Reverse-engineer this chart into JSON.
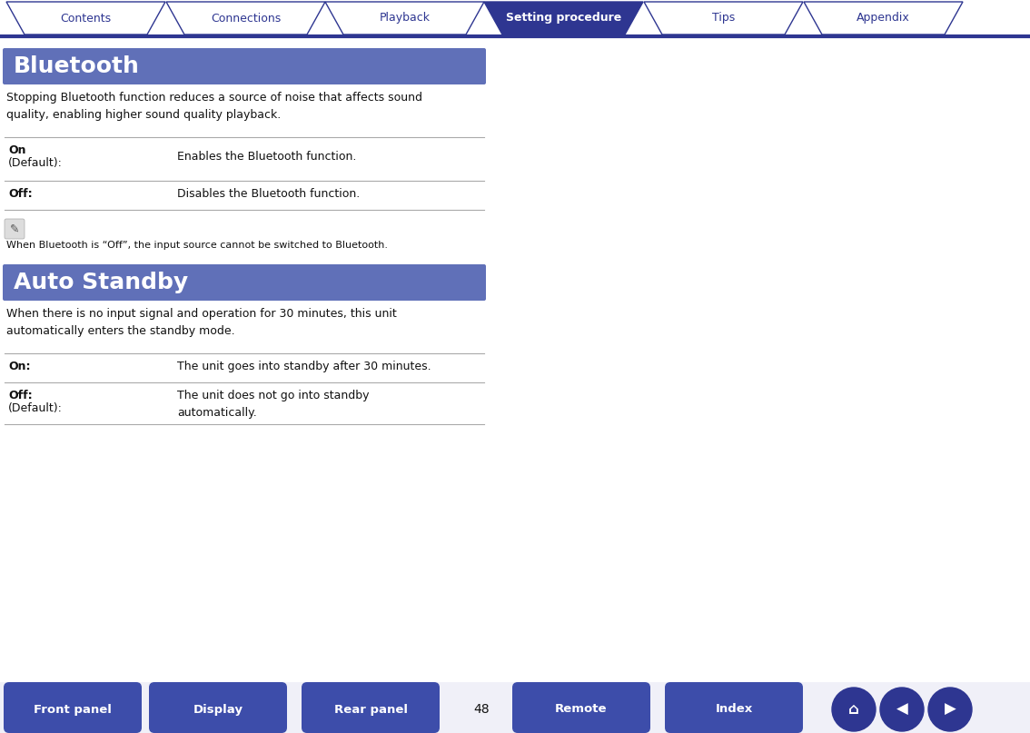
{
  "bg_color": "#ffffff",
  "nav_bar_color": "#2e3691",
  "nav_active_color": "#2e3691",
  "nav_inactive_text": "#2e3691",
  "nav_tabs": [
    "Contents",
    "Connections",
    "Playback",
    "Setting procedure",
    "Tips",
    "Appendix"
  ],
  "nav_active_index": 3,
  "section_header_color": "#6070b8",
  "section_header_text_color": "#ffffff",
  "section1_title": "Bluetooth",
  "section1_desc": "Stopping Bluetooth function reduces a source of noise that affects sound\nquality, enabling higher sound quality playback.",
  "section1_row1_label1": "On",
  "section1_row1_label2": "(Default):",
  "section1_row1_value": "Enables the Bluetooth function.",
  "section1_row2_label": "Off:",
  "section1_row2_value": "Disables the Bluetooth function.",
  "note_text": "When Bluetooth is “Off”, the input source cannot be switched to Bluetooth.",
  "section2_title": "Auto Standby",
  "section2_desc": "When there is no input signal and operation for 30 minutes, this unit\nautomatically enters the standby mode.",
  "section2_row1_label": "On:",
  "section2_row1_value": "The unit goes into standby after 30 minutes.",
  "section2_row2_label1": "Off:",
  "section2_row2_label2": "(Default):",
  "section2_row2_value": "The unit does not go into standby\nautomatically.",
  "bottom_buttons": [
    "Front panel",
    "Display",
    "Rear panel",
    "Remote",
    "Index"
  ],
  "page_number": "48",
  "bottom_bar_color": "#3d4daa",
  "line_color": "#aaaaaa",
  "text_color": "#333333",
  "dark_text": "#111111"
}
